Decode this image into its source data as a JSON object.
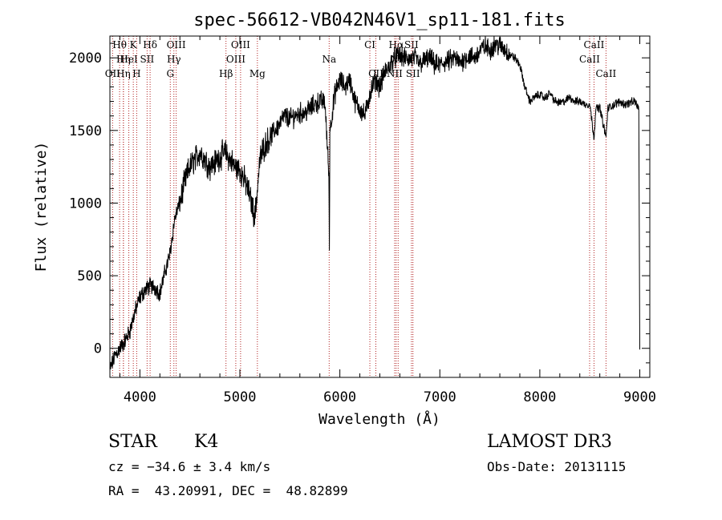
{
  "chart_data": {
    "type": "line",
    "title": "spec-56612-VB042N46V1_sp11-181.fits",
    "xlabel": "Wavelength (Å)",
    "ylabel": "Flux (relative)",
    "xlim": [
      3700,
      9100
    ],
    "ylim": [
      -200,
      2150
    ],
    "x_ticks": [
      4000,
      5000,
      6000,
      7000,
      8000,
      9000
    ],
    "y_ticks": [
      0,
      500,
      1000,
      1500,
      2000
    ],
    "x_tick_labels": [
      "4000",
      "5000",
      "6000",
      "7000",
      "8000",
      "9000"
    ],
    "y_tick_labels": [
      "0",
      "500",
      "1000",
      "1500",
      "2000"
    ],
    "grid": false,
    "line_color": "#000000",
    "marker_color": "#b22222",
    "series": [
      {
        "x": [
          3700,
          3750,
          3800,
          3850,
          3900,
          3950,
          4000,
          4050,
          4100,
          4150,
          4200,
          4250,
          4300,
          4350,
          4400,
          4450,
          4500,
          4550,
          4600,
          4650,
          4700,
          4750,
          4800,
          4850,
          4900,
          4950,
          5000,
          5050,
          5100,
          5150,
          5200,
          5250,
          5300,
          5350,
          5400,
          5450,
          5500,
          5550,
          5600,
          5650,
          5700,
          5750,
          5800,
          5850,
          5890,
          5895,
          5900,
          5950,
          6000,
          6050,
          6100,
          6150,
          6200,
          6250,
          6300,
          6350,
          6400,
          6450,
          6500,
          6550,
          6600,
          6650,
          6700,
          6750,
          6800,
          6850,
          6900,
          6950,
          7000,
          7050,
          7100,
          7150,
          7200,
          7250,
          7300,
          7350,
          7400,
          7450,
          7500,
          7550,
          7600,
          7650,
          7700,
          7750,
          7800,
          7850,
          7900,
          7950,
          8000,
          8050,
          8100,
          8150,
          8200,
          8250,
          8300,
          8350,
          8400,
          8450,
          8500,
          8542,
          8560,
          8600,
          8662,
          8680,
          8700,
          8750,
          8800,
          8850,
          8900,
          8950,
          8990,
          9000
        ],
        "y": [
          -150,
          -50,
          0,
          50,
          120,
          250,
          350,
          400,
          430,
          420,
          380,
          520,
          650,
          900,
          1000,
          1150,
          1250,
          1300,
          1350,
          1300,
          1250,
          1280,
          1320,
          1350,
          1300,
          1250,
          1230,
          1150,
          1050,
          900,
          1300,
          1400,
          1450,
          1500,
          1550,
          1600,
          1580,
          1600,
          1620,
          1620,
          1650,
          1680,
          1700,
          1700,
          1200,
          680,
          1500,
          1750,
          1850,
          1800,
          1850,
          1700,
          1650,
          1600,
          1750,
          1850,
          1800,
          1900,
          1950,
          2000,
          2020,
          2000,
          1990,
          2000,
          1960,
          1980,
          2000,
          1950,
          1950,
          1970,
          1980,
          2000,
          1960,
          2000,
          2010,
          2000,
          2050,
          2080,
          2050,
          2100,
          2080,
          2060,
          2020,
          2000,
          1950,
          1800,
          1700,
          1730,
          1750,
          1720,
          1760,
          1700,
          1690,
          1700,
          1730,
          1700,
          1700,
          1680,
          1680,
          1450,
          1650,
          1660,
          1450,
          1650,
          1660,
          1680,
          1700,
          1680,
          1690,
          1700,
          1650,
          -20
        ]
      }
    ],
    "line_markers": [
      {
        "label": "Hθ",
        "x": 3797,
        "row": 0
      },
      {
        "label": "K",
        "x": 3934,
        "row": 0
      },
      {
        "label": "Hδ",
        "x": 4102,
        "row": 0
      },
      {
        "label": "OIII",
        "x": 4363,
        "row": 0
      },
      {
        "label": "OIII",
        "x": 5007,
        "row": 0
      },
      {
        "label": "CI",
        "x": 6300,
        "row": 0
      },
      {
        "label": "Hα",
        "x": 6563,
        "row": 0
      },
      {
        "label": "SII",
        "x": 6716,
        "row": 0
      },
      {
        "label": "CaII",
        "x": 8542,
        "row": 0
      },
      {
        "label": "Hη",
        "x": 3835,
        "row": 1
      },
      {
        "label": "HeI",
        "x": 3889,
        "row": 1
      },
      {
        "label": "SII",
        "x": 4072,
        "row": 1
      },
      {
        "label": "Hγ",
        "x": 4340,
        "row": 1
      },
      {
        "label": "OIII",
        "x": 4959,
        "row": 1
      },
      {
        "label": "Na",
        "x": 5893,
        "row": 1
      },
      {
        "label": "NII",
        "x": 6583,
        "row": 1
      },
      {
        "label": "CaII",
        "x": 8498,
        "row": 1
      },
      {
        "label": "OII",
        "x": 3727,
        "row": 2
      },
      {
        "label": "Hη",
        "x": 3835,
        "row": 2
      },
      {
        "label": "H",
        "x": 3968,
        "row": 2
      },
      {
        "label": "G",
        "x": 4304,
        "row": 2
      },
      {
        "label": "Hβ",
        "x": 4861,
        "row": 2
      },
      {
        "label": "Mg",
        "x": 5175,
        "row": 2
      },
      {
        "label": "CII",
        "x": 6360,
        "row": 2
      },
      {
        "label": "NII",
        "x": 6548,
        "row": 2
      },
      {
        "label": "SII",
        "x": 6731,
        "row": 2
      },
      {
        "label": "CaII",
        "x": 8662,
        "row": 2
      }
    ]
  },
  "info": {
    "object_class": "STAR",
    "subclass": "K4",
    "survey": "LAMOST DR3",
    "cz": "cz = −34.6 ± 3.4 km/s",
    "obs_date": "Obs-Date: 20131115",
    "coords": "RA =  43.20991, DEC =  48.82899"
  }
}
